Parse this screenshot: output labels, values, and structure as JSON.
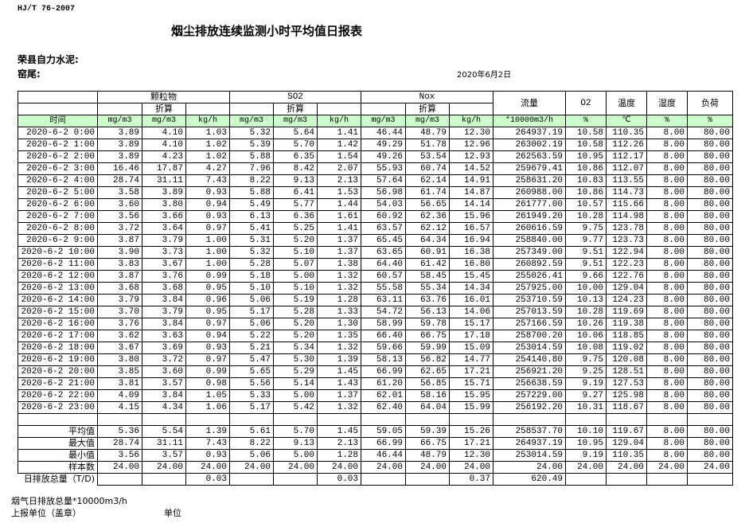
{
  "standard": "HJ/T  76-2007",
  "title": "烟尘排放连续监测小时平均值日报表",
  "company": "荣县自力水泥:",
  "kiln": "窑尾:",
  "date": "2020年6月2日",
  "header": {
    "particulate": "颗粒物",
    "so2": "SO2",
    "nox": "Nox",
    "converted": "折算",
    "flow": "流量",
    "o2": "O2",
    "temp": "温度",
    "humidity": "湿度",
    "load": "负荷",
    "time": "时间",
    "units": [
      "mg/m3",
      "mg/m3",
      "kg/h",
      "mg/m3",
      "mg/m3",
      "kg/h",
      "mg/m3",
      "mg/m3",
      "kg/h",
      "*10000m3/h",
      "%",
      "℃",
      "%",
      "%"
    ]
  },
  "rows": [
    [
      "2020-6-2 0:00",
      "3.89",
      "4.10",
      "1.03",
      "5.32",
      "5.64",
      "1.41",
      "46.44",
      "48.79",
      "12.30",
      "264937.19",
      "10.58",
      "110.35",
      "8.00",
      "80.00"
    ],
    [
      "2020-6-2 1:00",
      "3.89",
      "4.10",
      "1.02",
      "5.39",
      "5.70",
      "1.42",
      "49.29",
      "51.78",
      "12.96",
      "263002.19",
      "10.58",
      "112.26",
      "8.00",
      "80.00"
    ],
    [
      "2020-6-2 2:00",
      "3.89",
      "4.23",
      "1.02",
      "5.88",
      "6.35",
      "1.54",
      "49.26",
      "53.54",
      "12.93",
      "262563.59",
      "10.95",
      "112.17",
      "8.00",
      "80.00"
    ],
    [
      "2020-6-2 3:00",
      "16.46",
      "17.87",
      "4.27",
      "7.96",
      "8.42",
      "2.07",
      "55.93",
      "60.74",
      "14.52",
      "259679.41",
      "10.86",
      "112.07",
      "8.00",
      "80.00"
    ],
    [
      "2020-6-2 4:00",
      "28.74",
      "31.11",
      "7.43",
      "8.22",
      "9.13",
      "2.13",
      "57.64",
      "62.14",
      "14.91",
      "258631.20",
      "10.83",
      "113.55",
      "8.00",
      "80.00"
    ],
    [
      "2020-6-2 5:00",
      "3.58",
      "3.89",
      "0.93",
      "5.88",
      "6.41",
      "1.53",
      "56.98",
      "61.74",
      "14.87",
      "260988.00",
      "10.86",
      "114.73",
      "8.00",
      "80.00"
    ],
    [
      "2020-6-2 6:00",
      "3.60",
      "3.80",
      "0.94",
      "5.49",
      "5.77",
      "1.44",
      "54.03",
      "56.65",
      "14.14",
      "261777.00",
      "10.57",
      "115.66",
      "8.00",
      "80.00"
    ],
    [
      "2020-6-2 7:00",
      "3.56",
      "3.66",
      "0.93",
      "6.13",
      "6.36",
      "1.61",
      "60.92",
      "62.36",
      "15.96",
      "261949.20",
      "10.28",
      "114.98",
      "8.00",
      "80.00"
    ],
    [
      "2020-6-2 8:00",
      "3.72",
      "3.64",
      "0.97",
      "5.41",
      "5.25",
      "1.41",
      "63.57",
      "62.12",
      "16.57",
      "260616.59",
      "9.75",
      "123.78",
      "8.00",
      "80.00"
    ],
    [
      "2020-6-2 9:00",
      "3.87",
      "3.79",
      "1.00",
      "5.31",
      "5.20",
      "1.37",
      "65.45",
      "64.34",
      "16.94",
      "258840.00",
      "9.77",
      "123.73",
      "8.00",
      "80.00"
    ],
    [
      "2020-6-2 10:00",
      "3.90",
      "3.73",
      "1.00",
      "5.32",
      "5.10",
      "1.37",
      "63.65",
      "60.91",
      "16.38",
      "257349.00",
      "9.51",
      "122.94",
      "8.00",
      "80.00"
    ],
    [
      "2020-6-2 11:00",
      "3.83",
      "3.67",
      "1.00",
      "5.28",
      "5.07",
      "1.38",
      "64.40",
      "61.42",
      "16.80",
      "260892.59",
      "9.51",
      "122.23",
      "8.00",
      "80.00"
    ],
    [
      "2020-6-2 12:00",
      "3.87",
      "3.76",
      "0.99",
      "5.18",
      "5.00",
      "1.32",
      "60.57",
      "58.45",
      "15.45",
      "255026.41",
      "9.66",
      "122.76",
      "8.00",
      "80.00"
    ],
    [
      "2020-6-2 13:00",
      "3.68",
      "3.68",
      "0.95",
      "5.10",
      "5.10",
      "1.32",
      "55.58",
      "55.34",
      "14.34",
      "257925.00",
      "10.00",
      "129.04",
      "8.00",
      "80.00"
    ],
    [
      "2020-6-2 14:00",
      "3.79",
      "3.84",
      "0.96",
      "5.06",
      "5.19",
      "1.28",
      "63.11",
      "63.76",
      "16.01",
      "253710.59",
      "10.13",
      "124.23",
      "8.00",
      "80.00"
    ],
    [
      "2020-6-2 15:00",
      "3.70",
      "3.79",
      "0.95",
      "5.17",
      "5.28",
      "1.33",
      "54.72",
      "56.13",
      "14.06",
      "257013.59",
      "10.28",
      "119.69",
      "8.00",
      "80.00"
    ],
    [
      "2020-6-2 16:00",
      "3.76",
      "3.84",
      "0.97",
      "5.06",
      "5.20",
      "1.30",
      "58.99",
      "59.78",
      "15.17",
      "257166.59",
      "10.26",
      "119.38",
      "8.00",
      "80.00"
    ],
    [
      "2020-6-2 17:00",
      "3.62",
      "3.63",
      "0.94",
      "5.22",
      "5.20",
      "1.35",
      "66.40",
      "66.75",
      "17.18",
      "258700.20",
      "10.06",
      "118.85",
      "8.00",
      "80.00"
    ],
    [
      "2020-6-2 18:00",
      "3.67",
      "3.69",
      "0.93",
      "5.21",
      "5.34",
      "1.32",
      "59.66",
      "59.99",
      "15.09",
      "253014.59",
      "10.08",
      "119.02",
      "8.00",
      "80.00"
    ],
    [
      "2020-6-2 19:00",
      "3.80",
      "3.72",
      "0.97",
      "5.47",
      "5.30",
      "1.39",
      "58.13",
      "56.82",
      "14.77",
      "254140.80",
      "9.75",
      "120.08",
      "8.00",
      "80.00"
    ],
    [
      "2020-6-2 20:00",
      "3.85",
      "3.60",
      "0.99",
      "5.65",
      "5.29",
      "1.45",
      "66.99",
      "62.65",
      "17.21",
      "256921.20",
      "9.25",
      "128.51",
      "8.00",
      "80.00"
    ],
    [
      "2020-6-2 21:00",
      "3.81",
      "3.57",
      "0.98",
      "5.56",
      "5.14",
      "1.43",
      "61.20",
      "56.85",
      "15.71",
      "256638.59",
      "9.19",
      "127.53",
      "8.00",
      "80.00"
    ],
    [
      "2020-6-2 22:00",
      "4.09",
      "3.84",
      "1.05",
      "5.33",
      "5.00",
      "1.37",
      "62.01",
      "58.16",
      "15.95",
      "257229.00",
      "9.27",
      "125.98",
      "8.00",
      "80.00"
    ],
    [
      "2020-6-2 23:00",
      "4.15",
      "4.34",
      "1.06",
      "5.17",
      "5.42",
      "1.32",
      "62.40",
      "64.04",
      "15.99",
      "256192.20",
      "10.31",
      "118.67",
      "8.00",
      "80.00"
    ]
  ],
  "stats": [
    [
      "平均值",
      "5.36",
      "5.54",
      "1.39",
      "5.61",
      "5.70",
      "1.45",
      "59.05",
      "59.39",
      "15.26",
      "258537.70",
      "10.10",
      "119.67",
      "8.00",
      "80.00"
    ],
    [
      "最大值",
      "28.74",
      "31.11",
      "7.43",
      "8.22",
      "9.13",
      "2.13",
      "66.99",
      "66.75",
      "17.21",
      "264937.19",
      "10.95",
      "129.04",
      "8.00",
      "80.00"
    ],
    [
      "最小值",
      "3.56",
      "3.57",
      "0.93",
      "5.06",
      "5.00",
      "1.28",
      "46.44",
      "48.79",
      "12.30",
      "253014.59",
      "9.19",
      "110.35",
      "8.00",
      "80.00"
    ],
    [
      "样本数",
      "24.00",
      "24.00",
      "24.00",
      "24.00",
      "24.00",
      "24.00",
      "24.00",
      "24.00",
      "24.00",
      "24.00",
      "24.00",
      "24.00",
      "24.00",
      "24.00"
    ]
  ],
  "daily_total": [
    "日排放总量（T/D)",
    "",
    "",
    "0.03",
    "",
    "",
    "0.03",
    "",
    "",
    "0.37",
    "620.49",
    "",
    "",
    "",
    ""
  ],
  "footer": {
    "flue_gas_total": "烟气日排放总量*10000m3/h",
    "reporting_unit": "上报单位（盖章）",
    "unit": "单位"
  }
}
